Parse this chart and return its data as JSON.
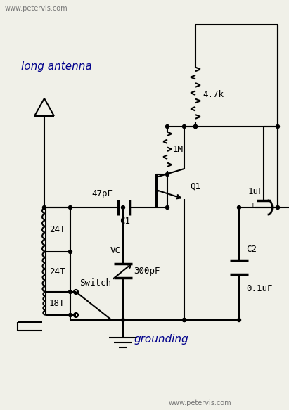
{
  "bg_color": "#f0f0e8",
  "line_color": "#000000",
  "text_color": "#000000",
  "italic_color": "#00008B",
  "watermark_top": "www.petervis.com",
  "watermark_bot": "www.petervis.com",
  "label_antenna": "long antenna",
  "label_ground": "grounding",
  "label_R1": "4.7k",
  "label_R2": "1M",
  "label_C1_val": "47pF",
  "label_C1": "C1",
  "label_VC": "VC",
  "label_VC_val": "300pF",
  "label_C2": "C2",
  "label_C2_val": "0.1uF",
  "label_C3_val": "1uF",
  "label_Q1": "Q1",
  "label_T24a": "24T",
  "label_T24b": "24T",
  "label_T18": "18T",
  "label_switch": "Switch"
}
